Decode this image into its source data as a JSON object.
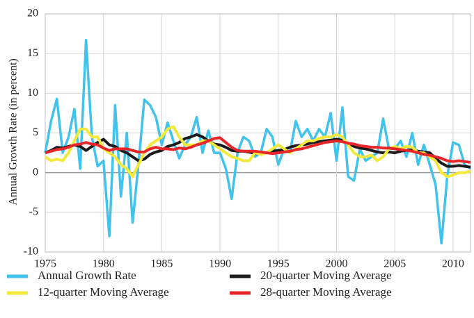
{
  "chart_data": {
    "type": "line",
    "y_label": "Annual Growth Rate (in percent)",
    "x": [
      1975,
      1975.5,
      1976,
      1976.5,
      1977,
      1977.5,
      1978,
      1978.5,
      1979,
      1979.5,
      1980,
      1980.5,
      1981,
      1981.5,
      1982,
      1982.5,
      1983,
      1983.5,
      1984,
      1984.5,
      1985,
      1985.5,
      1986,
      1986.5,
      1987,
      1987.5,
      1988,
      1988.5,
      1989,
      1989.5,
      1990,
      1990.5,
      1991,
      1991.5,
      1992,
      1992.5,
      1993,
      1993.5,
      1994,
      1994.5,
      1995,
      1995.5,
      1996,
      1996.5,
      1997,
      1997.5,
      1998,
      1998.5,
      1999,
      1999.5,
      2000,
      2000.5,
      2001,
      2001.5,
      2002,
      2002.5,
      2003,
      2003.5,
      2004,
      2004.5,
      2005,
      2005.5,
      2006,
      2006.5,
      2007,
      2007.5,
      2008,
      2008.5,
      2009,
      2009.5,
      2010,
      2010.5,
      2011,
      2011.5
    ],
    "series": [
      {
        "name": "Annual Growth Rate",
        "color": "#41c3ee",
        "values": [
          2.5,
          6.5,
          9.3,
          2.5,
          4.5,
          8.0,
          0.5,
          16.7,
          4.5,
          0.8,
          1.5,
          -8.0,
          8.5,
          -3,
          5,
          -6.3,
          1,
          9.2,
          8.5,
          7,
          3.5,
          6.3,
          4,
          1.8,
          3.5,
          4.5,
          7,
          2.5,
          5.3,
          2.5,
          2.5,
          0.5,
          -3.3,
          2.5,
          4.5,
          4,
          2,
          2.5,
          5.5,
          4.5,
          1,
          3,
          2.5,
          6.5,
          4.5,
          5.5,
          4,
          5.5,
          4.5,
          7.5,
          1.5,
          8.2,
          -0.5,
          -1,
          3,
          1.5,
          2,
          2.5,
          6.8,
          3,
          3,
          4,
          2,
          5,
          1,
          3.5,
          1,
          -1.5,
          -8.9,
          -0.5,
          3.8,
          3.5,
          1,
          0.5
        ]
      },
      {
        "name": "20-quarter Moving Average",
        "color": "#1a1a1a",
        "values": [
          2.5,
          2.8,
          3.2,
          3.1,
          3.3,
          3.5,
          3.3,
          2.8,
          3.3,
          3.8,
          4.2,
          3.5,
          3.3,
          2.8,
          2.5,
          2,
          1.5,
          1.7,
          2.3,
          2.6,
          2.8,
          3.3,
          3.5,
          3.8,
          4.3,
          4.5,
          4.8,
          4.5,
          4,
          3.6,
          3.5,
          3.2,
          2.8,
          2.7,
          2.7,
          2.6,
          2.4,
          2.4,
          2.5,
          2.7,
          2.8,
          2.9,
          3.2,
          3.4,
          3.5,
          3.6,
          3.8,
          3.9,
          4,
          4.1,
          4.2,
          4.1,
          3.7,
          3.3,
          3.1,
          3,
          2.8,
          2.6,
          2.5,
          2.6,
          2.5,
          2.7,
          2.8,
          2.9,
          2.7,
          2.6,
          2.5,
          1.8,
          1.2,
          0.8,
          0.8,
          0.9,
          0.8,
          0.7
        ]
      },
      {
        "name": "12-quarter Moving Average",
        "color": "#f2e93a",
        "values": [
          2,
          1.5,
          1.7,
          1.5,
          2.5,
          4,
          5.5,
          5.5,
          4.5,
          4.5,
          3,
          2.5,
          2,
          1,
          0.5,
          -0.5,
          1,
          2.5,
          3.5,
          4,
          4.5,
          5.5,
          5.8,
          4.5,
          3.5,
          3.5,
          3.5,
          4,
          4,
          3.5,
          3,
          2.5,
          2,
          1.8,
          1.5,
          1.5,
          2.5,
          2.3,
          2.5,
          3,
          3.5,
          3,
          2.5,
          3,
          3.5,
          4,
          4,
          4.3,
          4.5,
          4.5,
          4.8,
          4.5,
          3.5,
          2.5,
          2,
          2,
          2.2,
          1.5,
          2,
          3,
          3.3,
          3,
          3.3,
          3.2,
          2.5,
          2.5,
          2,
          1.5,
          0,
          -0.5,
          -0.3,
          0,
          0,
          0.2
        ]
      },
      {
        "name": "28-quarter Moving Average",
        "color": "#e8262a",
        "values": [
          2.5,
          2.7,
          2.9,
          3,
          3.2,
          3.5,
          3.6,
          3.8,
          3.6,
          3.5,
          3.1,
          2.8,
          3,
          3,
          3,
          2.8,
          2.6,
          2.6,
          3,
          3.2,
          3,
          3,
          2.9,
          3.1,
          3,
          3.2,
          3.5,
          3.7,
          4,
          4.3,
          4.4,
          3.8,
          3.2,
          2.8,
          2.7,
          2.7,
          2.7,
          2.6,
          2.5,
          2.4,
          2.5,
          2.6,
          2.7,
          2.9,
          3,
          3.2,
          3.4,
          3.6,
          3.8,
          3.9,
          4,
          3.9,
          3.7,
          3.6,
          3.4,
          3.3,
          3.2,
          3.2,
          3.1,
          3.1,
          3,
          2.9,
          2.8,
          2.7,
          2.5,
          2.3,
          2.2,
          2,
          1.8,
          1.5,
          1.4,
          1.5,
          1.4,
          1.3
        ]
      }
    ],
    "xlim": [
      1975,
      2011.5
    ],
    "xticks": [
      1975,
      1980,
      1985,
      1990,
      1995,
      2000,
      2005,
      2010
    ],
    "ylim": [
      -10,
      20
    ],
    "yticks": [
      -10,
      -5,
      0,
      5,
      10,
      15,
      20
    ],
    "grid": true,
    "legend": "bottom"
  }
}
